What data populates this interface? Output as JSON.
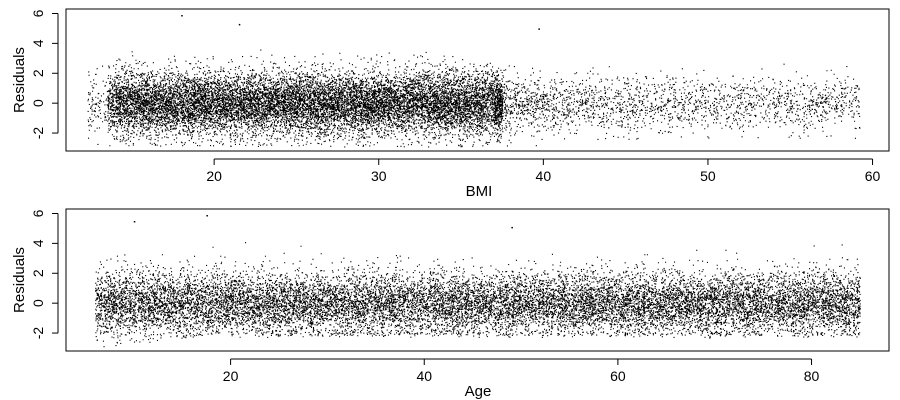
{
  "chart_data": [
    {
      "type": "scatter",
      "title": "",
      "xlabel": "BMI",
      "ylabel": "Residuals",
      "xlim": [
        11,
        61
      ],
      "ylim": [
        -3.2,
        6.3
      ],
      "xticks": [
        "20",
        "30",
        "40",
        "50",
        "60"
      ],
      "yticks": [
        "-2",
        "0",
        "2",
        "4",
        "6"
      ],
      "grid": false,
      "legend": "none",
      "point_color": "#000000",
      "x_range_of_points": [
        12.3,
        59.2
      ],
      "y_range_of_points": [
        -3.0,
        5.9
      ],
      "density": "dense band of points; heavily overplotted between BMI 14 and 37, sparser vertical streaks from 40 to 59",
      "notable_points": [
        {
          "x": 18.0,
          "y": 5.9
        },
        {
          "x": 21.5,
          "y": 5.3
        },
        {
          "x": 39.7,
          "y": 5.0
        }
      ]
    },
    {
      "type": "scatter",
      "title": "",
      "xlabel": "Age",
      "ylabel": "Residuals",
      "xlim": [
        3,
        88
      ],
      "ylim": [
        -3.2,
        6.3
      ],
      "xticks": [
        "20",
        "40",
        "60",
        "80"
      ],
      "yticks": [
        "-2",
        "0",
        "2",
        "4",
        "6"
      ],
      "grid": false,
      "legend": "none",
      "point_color": "#000000",
      "x_range_of_points": [
        6,
        85
      ],
      "y_range_of_points": [
        -3.0,
        5.9
      ],
      "density": "dense band of points across all ages; lower edge rises from about -3.0 at age 6 to about -2.0 at age 20",
      "notable_points": [
        {
          "x": 17.5,
          "y": 5.9
        },
        {
          "x": 10.0,
          "y": 5.5
        },
        {
          "x": 49.0,
          "y": 5.1
        }
      ]
    }
  ]
}
